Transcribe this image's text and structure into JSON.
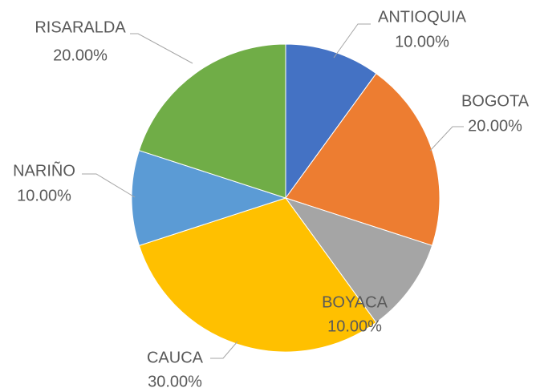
{
  "chart_data": {
    "type": "pie",
    "categories": [
      "ANTIOQUIA",
      "BOGOTA",
      "BOYACA",
      "CAUCA",
      "NARIÑO",
      "RISARALDA"
    ],
    "values": [
      10,
      20,
      10,
      30,
      10,
      20
    ],
    "value_labels": [
      "10.00%",
      "20.00%",
      "10.00%",
      "30.00%",
      "10.00%",
      "20.00%"
    ],
    "colors": [
      "#4472c4",
      "#ed7d31",
      "#a5a5a5",
      "#ffc000",
      "#5b9bd5",
      "#70ad47"
    ]
  }
}
